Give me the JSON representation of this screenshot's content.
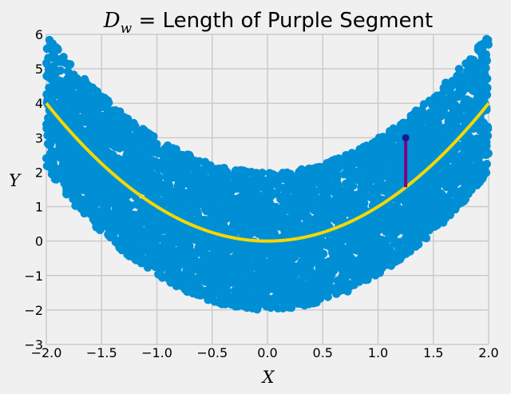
{
  "chart_data": {
    "type": "scatter",
    "title": {
      "math_base": "D",
      "math_sub": "w",
      "eq": " = ",
      "text": " Length of Purple Segment"
    },
    "xlabel": "X",
    "ylabel": "Y",
    "xlim": [
      -2,
      2
    ],
    "ylim": [
      -3,
      6
    ],
    "xticks": [
      -2.0,
      -1.5,
      -1.0,
      -0.5,
      0.0,
      0.5,
      1.0,
      1.5,
      2.0
    ],
    "yticks": [
      -3,
      -2,
      -1,
      0,
      1,
      2,
      3,
      4,
      5,
      6
    ],
    "xtick_labels": [
      "−2.0",
      "−1.5",
      "−1.0",
      "−0.5",
      "0.0",
      "0.5",
      "1.0",
      "1.5",
      "2.0"
    ],
    "ytick_labels": [
      "−3",
      "−2",
      "−1",
      "0",
      "1",
      "2",
      "3",
      "4",
      "5",
      "6"
    ],
    "grid": true,
    "style": "fivethirtyeight",
    "scatter": {
      "description_of_distribution": "y = x^2 + uniform noise in [-2, 2]",
      "x_range": [
        -2,
        2
      ],
      "noise_range": [
        -2,
        2
      ],
      "n_points_approx": 5000,
      "color": "#008fd5"
    },
    "curve": {
      "function": "y = x^2",
      "x_range": [
        -2,
        2
      ],
      "color": "#f5d800"
    },
    "segment": {
      "x": 1.25,
      "y_from": 1.5625,
      "y_to": 3.0,
      "line_color": "#800080",
      "point_color": "#1a1a8c"
    }
  }
}
